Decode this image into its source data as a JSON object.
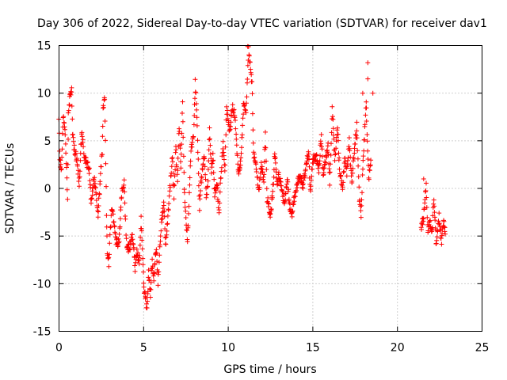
{
  "chart_data": {
    "type": "scatter",
    "title": "Day 306 of 2022, Sidereal Day-to-day VTEC variation (SDTVAR) for receiver dav1",
    "xlabel": "GPS time / hours",
    "ylabel": "SDTVAR / TECUs",
    "xlim": [
      0,
      25
    ],
    "ylim": [
      -15,
      15
    ],
    "xticks": [
      0,
      5,
      10,
      15,
      20,
      25
    ],
    "yticks": [
      -15,
      -10,
      -5,
      0,
      5,
      10,
      15
    ],
    "grid": true,
    "marker": "+",
    "color": "#ff0000",
    "series": [
      {
        "name": "dav1",
        "anchors": [
          [
            0.0,
            7.5
          ],
          [
            0.05,
            2.8
          ],
          [
            0.15,
            2.2
          ],
          [
            0.25,
            7.8
          ],
          [
            0.35,
            6.2
          ],
          [
            0.45,
            2.0
          ],
          [
            0.5,
            -0.8
          ],
          [
            0.55,
            7.9
          ],
          [
            0.65,
            9.8
          ],
          [
            0.75,
            10.4
          ],
          [
            0.8,
            5.5
          ],
          [
            0.9,
            4.2
          ],
          [
            1.0,
            3.5
          ],
          [
            1.1,
            2.2
          ],
          [
            1.2,
            0.5
          ],
          [
            1.3,
            4.5
          ],
          [
            1.35,
            6.0
          ],
          [
            1.5,
            3.2
          ],
          [
            1.7,
            2.5
          ],
          [
            1.8,
            1.8
          ],
          [
            1.9,
            -1.5
          ],
          [
            2.0,
            0.0
          ],
          [
            2.05,
            1.2
          ],
          [
            2.2,
            -0.8
          ],
          [
            2.3,
            -3.0
          ],
          [
            2.45,
            1.5
          ],
          [
            2.55,
            4.0
          ],
          [
            2.6,
            8.0
          ],
          [
            2.7,
            9.5
          ],
          [
            2.8,
            -2.5
          ],
          [
            2.85,
            -6.5
          ],
          [
            2.95,
            -7.8
          ],
          [
            3.1,
            -2.0
          ],
          [
            3.2,
            -3.0
          ],
          [
            3.35,
            -5.5
          ],
          [
            3.55,
            -5.8
          ],
          [
            3.7,
            -0.5
          ],
          [
            3.85,
            0.5
          ],
          [
            4.0,
            -6.5
          ],
          [
            4.2,
            -6.0
          ],
          [
            4.35,
            -5.0
          ],
          [
            4.5,
            -8.5
          ],
          [
            4.6,
            -6.5
          ],
          [
            4.75,
            -8.0
          ],
          [
            4.85,
            -3.0
          ],
          [
            5.0,
            -10.0
          ],
          [
            5.1,
            -11.5
          ],
          [
            5.2,
            -12.5
          ],
          [
            5.3,
            -9.0
          ],
          [
            5.4,
            -11.0
          ],
          [
            5.5,
            -7.5
          ],
          [
            5.6,
            -9.5
          ],
          [
            5.75,
            -6.0
          ],
          [
            5.85,
            -10.0
          ],
          [
            5.95,
            -6.5
          ],
          [
            6.05,
            -3.5
          ],
          [
            6.2,
            -1.5
          ],
          [
            6.3,
            -6.0
          ],
          [
            6.45,
            -2.5
          ],
          [
            6.6,
            1.0
          ],
          [
            6.7,
            3.5
          ],
          [
            6.8,
            -1.0
          ],
          [
            6.9,
            4.5
          ],
          [
            7.0,
            0.5
          ],
          [
            7.1,
            6.5
          ],
          [
            7.2,
            2.0
          ],
          [
            7.3,
            9.0
          ],
          [
            7.4,
            0.0
          ],
          [
            7.5,
            -3.5
          ],
          [
            7.6,
            -5.5
          ],
          [
            7.8,
            4.0
          ],
          [
            7.95,
            5.5
          ],
          [
            8.05,
            11.0
          ],
          [
            8.15,
            7.5
          ],
          [
            8.3,
            -2.0
          ],
          [
            8.4,
            1.0
          ],
          [
            8.6,
            3.5
          ],
          [
            8.7,
            -1.0
          ],
          [
            8.8,
            0.5
          ],
          [
            8.9,
            6.5
          ],
          [
            9.0,
            2.0
          ],
          [
            9.1,
            3.5
          ],
          [
            9.2,
            -0.5
          ],
          [
            9.35,
            0.5
          ],
          [
            9.45,
            -2.5
          ],
          [
            9.55,
            1.0
          ],
          [
            9.7,
            4.5
          ],
          [
            9.8,
            1.5
          ],
          [
            9.9,
            8.5
          ],
          [
            10.0,
            7.0
          ],
          [
            10.1,
            6.0
          ],
          [
            10.25,
            8.5
          ],
          [
            10.4,
            7.5
          ],
          [
            10.6,
            1.5
          ],
          [
            10.75,
            3.0
          ],
          [
            10.9,
            9.0
          ],
          [
            11.05,
            8.0
          ],
          [
            11.2,
            14.8
          ],
          [
            11.3,
            13.0
          ],
          [
            11.4,
            11.0
          ],
          [
            11.5,
            3.5
          ],
          [
            11.6,
            3.0
          ],
          [
            11.8,
            -0.5
          ],
          [
            11.95,
            2.5
          ],
          [
            12.1,
            1.0
          ],
          [
            12.2,
            5.5
          ],
          [
            12.3,
            -1.0
          ],
          [
            12.5,
            -3.0
          ],
          [
            12.65,
            0.0
          ],
          [
            12.75,
            4.0
          ],
          [
            12.9,
            0.5
          ],
          [
            13.0,
            1.5
          ],
          [
            13.2,
            -0.5
          ],
          [
            13.35,
            -1.5
          ],
          [
            13.5,
            1.0
          ],
          [
            13.6,
            -1.5
          ],
          [
            13.75,
            -3.0
          ],
          [
            13.9,
            -1.0
          ],
          [
            14.1,
            0.5
          ],
          [
            14.25,
            1.5
          ],
          [
            14.4,
            0.0
          ],
          [
            14.6,
            2.5
          ],
          [
            14.75,
            4.0
          ],
          [
            14.85,
            -0.5
          ],
          [
            15.0,
            3.0
          ],
          [
            15.2,
            3.5
          ],
          [
            15.35,
            2.0
          ],
          [
            15.5,
            5.5
          ],
          [
            15.6,
            1.5
          ],
          [
            15.75,
            3.0
          ],
          [
            15.9,
            4.5
          ],
          [
            16.0,
            0.5
          ],
          [
            16.15,
            8.5
          ],
          [
            16.3,
            3.0
          ],
          [
            16.45,
            6.5
          ],
          [
            16.6,
            1.5
          ],
          [
            16.75,
            0.0
          ],
          [
            16.9,
            3.5
          ],
          [
            17.0,
            1.5
          ],
          [
            17.15,
            5.0
          ],
          [
            17.3,
            0.5
          ],
          [
            17.45,
            4.0
          ],
          [
            17.6,
            6.5
          ],
          [
            17.75,
            -1.0
          ],
          [
            17.85,
            -3.0
          ],
          [
            17.95,
            2.0
          ],
          [
            18.05,
            5.5
          ],
          [
            18.15,
            9.5
          ],
          [
            18.2,
            6.0
          ],
          [
            18.3,
            1.0
          ],
          [
            18.45,
            3.0
          ],
          [
            21.4,
            -4.0
          ],
          [
            21.55,
            -3.0
          ],
          [
            21.7,
            0.5
          ],
          [
            21.8,
            -5.0
          ],
          [
            21.9,
            -3.5
          ],
          [
            22.05,
            -4.5
          ],
          [
            22.15,
            -1.0
          ],
          [
            22.3,
            -6.0
          ],
          [
            22.45,
            -3.0
          ],
          [
            22.6,
            -5.5
          ],
          [
            22.75,
            -3.5
          ],
          [
            22.85,
            -5.0
          ]
        ],
        "outliers": [
          [
            11.15,
            14.9
          ],
          [
            18.25,
            13.2
          ],
          [
            18.25,
            11.5
          ],
          [
            18.55,
            10.0
          ],
          [
            21.55,
            1.0
          ],
          [
            17.95,
            10.0
          ]
        ]
      }
    ]
  }
}
